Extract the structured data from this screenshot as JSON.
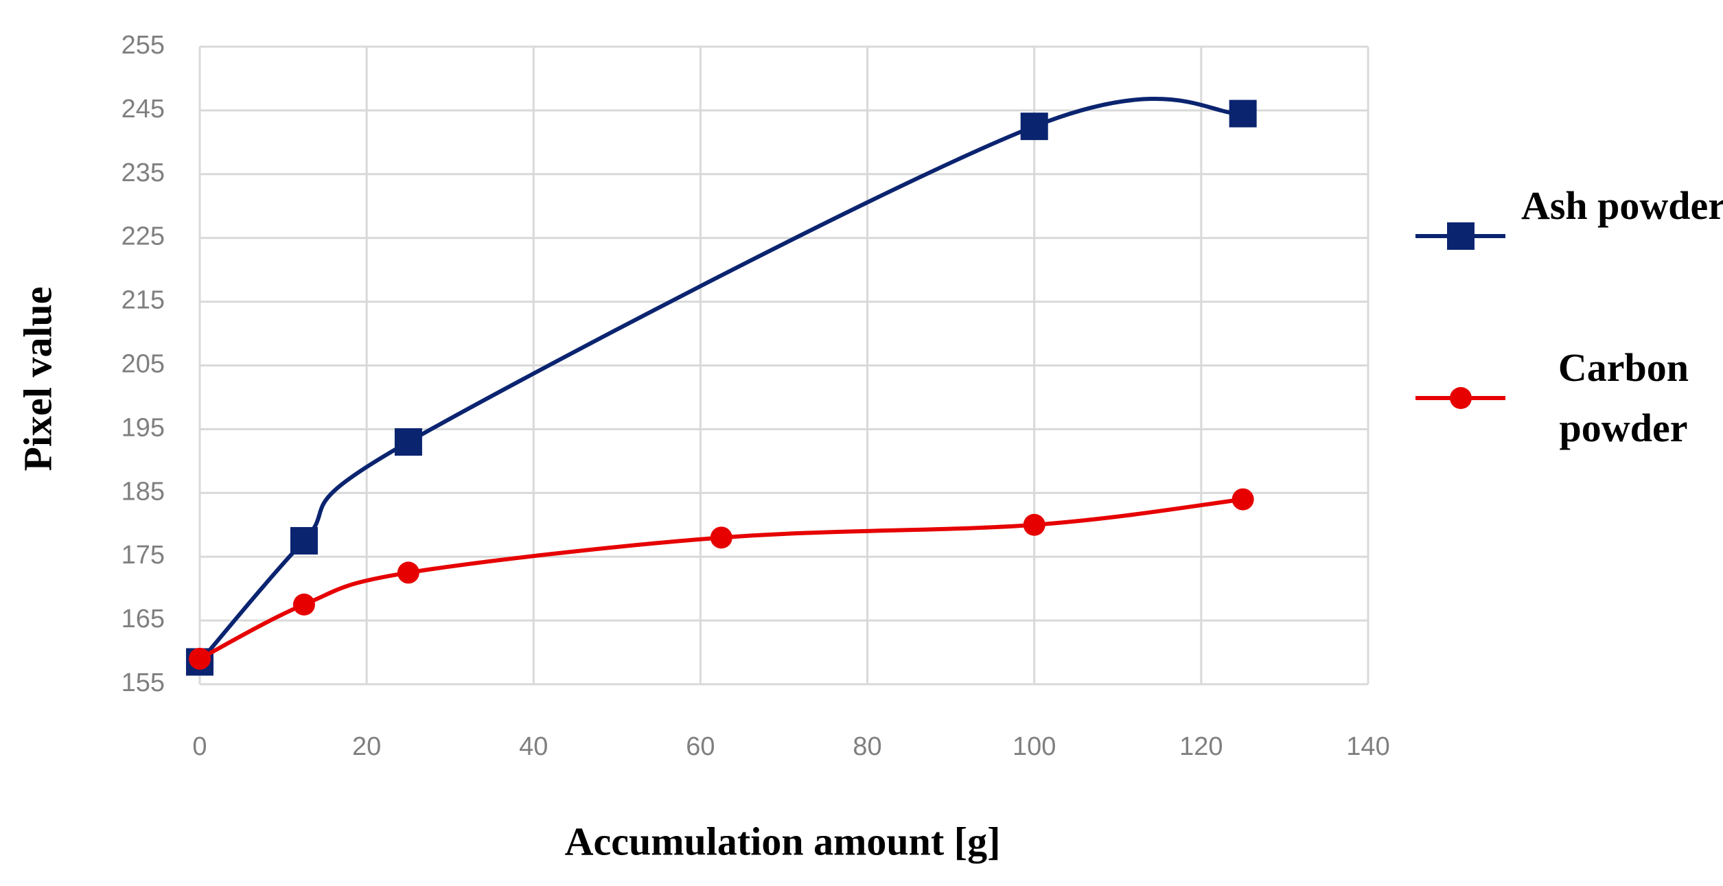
{
  "chart_data": {
    "type": "line",
    "x_label": "Accumulation amount [g]",
    "y_label": "Pixel value",
    "xlim": [
      0,
      140
    ],
    "xticks": [
      0,
      20,
      40,
      60,
      80,
      100,
      120,
      140
    ],
    "ylim": [
      155,
      255
    ],
    "yticks": [
      155,
      165,
      175,
      185,
      195,
      205,
      215,
      225,
      235,
      245,
      255
    ],
    "grid": true,
    "smooth": true,
    "legend": "right",
    "series": [
      {
        "name": "Ash powder",
        "color": "#0b2470",
        "marker": "square",
        "x": [
          0,
          12.5,
          25,
          100,
          125
        ],
        "values": [
          158.5,
          177.5,
          193,
          242.5,
          244.5
        ]
      },
      {
        "name": "Carbon powder",
        "color": "#e60000",
        "marker": "circle",
        "x": [
          0,
          12.5,
          25,
          62.5,
          100,
          125
        ],
        "values": [
          159,
          167.5,
          172.5,
          178,
          180,
          184
        ]
      }
    ]
  }
}
